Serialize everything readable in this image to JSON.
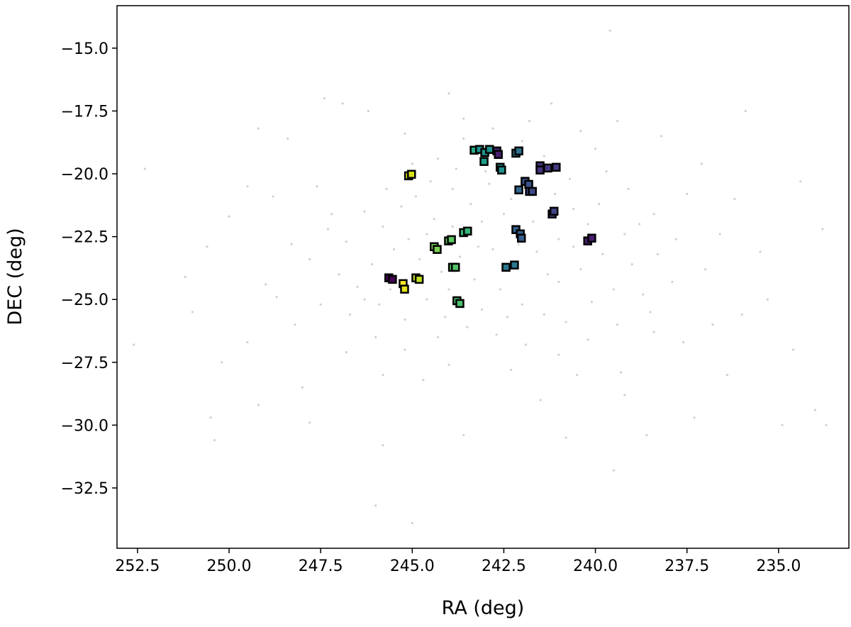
{
  "chart_data": {
    "type": "scatter",
    "title": "",
    "xlabel": "RA (deg)",
    "ylabel": "DEC (deg)",
    "xlim": [
      253.06,
      233.08
    ],
    "ylim": [
      -34.9,
      -13.31
    ],
    "x_inverted": true,
    "grid": false,
    "x_ticks": [
      252.5,
      250.0,
      247.5,
      245.0,
      242.5,
      240.0,
      237.5,
      235.0
    ],
    "x_tick_labels": [
      "252.5",
      "250.0",
      "247.5",
      "245.0",
      "242.5",
      "240.0",
      "237.5",
      "235.0"
    ],
    "y_ticks": [
      -15.0,
      -17.5,
      -20.0,
      -22.5,
      -25.0,
      -27.5,
      -30.0,
      -32.5
    ],
    "y_tick_labels": [
      "−15.0",
      "−17.5",
      "−20.0",
      "−22.5",
      "−25.0",
      "−27.5",
      "−30.0",
      "−32.5"
    ],
    "background_color": "#bdbdbd",
    "background_points": [
      [
        239.6,
        -14.3
      ],
      [
        246.0,
        -33.2
      ],
      [
        245.0,
        -33.9
      ],
      [
        239.5,
        -31.8
      ],
      [
        234.0,
        -29.4
      ],
      [
        233.7,
        -30.0
      ],
      [
        234.9,
        -30.0
      ],
      [
        252.3,
        -19.8
      ],
      [
        251.2,
        -24.1
      ],
      [
        250.5,
        -29.7
      ],
      [
        250.4,
        -30.6
      ],
      [
        252.6,
        -26.8
      ],
      [
        249.5,
        -20.5
      ],
      [
        249.2,
        -18.2
      ],
      [
        248.4,
        -18.6
      ],
      [
        247.4,
        -17.0
      ],
      [
        246.9,
        -17.2
      ],
      [
        235.9,
        -17.5
      ],
      [
        234.4,
        -20.3
      ],
      [
        233.8,
        -22.2
      ],
      [
        235.3,
        -25.0
      ],
      [
        234.6,
        -27.0
      ],
      [
        236.4,
        -28.0
      ],
      [
        237.3,
        -29.7
      ],
      [
        238.6,
        -30.4
      ],
      [
        240.8,
        -30.5
      ],
      [
        243.6,
        -30.4
      ],
      [
        245.8,
        -30.8
      ],
      [
        247.8,
        -29.9
      ],
      [
        249.2,
        -29.2
      ],
      [
        250.2,
        -27.5
      ],
      [
        251.0,
        -25.5
      ],
      [
        250.6,
        -22.9
      ],
      [
        250.0,
        -21.7
      ],
      [
        248.8,
        -20.9
      ],
      [
        247.6,
        -20.5
      ],
      [
        246.2,
        -17.5
      ],
      [
        244.0,
        -16.8
      ],
      [
        241.2,
        -17.2
      ],
      [
        239.4,
        -17.9
      ],
      [
        238.2,
        -18.5
      ],
      [
        237.1,
        -19.6
      ],
      [
        236.2,
        -21.0
      ],
      [
        235.5,
        -23.1
      ],
      [
        236.0,
        -25.6
      ],
      [
        237.6,
        -26.7
      ],
      [
        239.3,
        -27.9
      ],
      [
        241.5,
        -29.0
      ],
      [
        244.7,
        -28.2
      ],
      [
        246.8,
        -27.1
      ],
      [
        248.2,
        -26.0
      ],
      [
        249.0,
        -24.4
      ],
      [
        248.3,
        -22.8
      ],
      [
        247.2,
        -21.6
      ],
      [
        238.5,
        -25.5
      ],
      [
        237.0,
        -23.8
      ],
      [
        238.4,
        -21.6
      ],
      [
        240.0,
        -19.0
      ],
      [
        245.8,
        -22.1
      ],
      [
        245.3,
        -21.3
      ],
      [
        244.9,
        -20.9
      ],
      [
        244.4,
        -21.8
      ],
      [
        243.9,
        -20.6
      ],
      [
        243.4,
        -21.2
      ],
      [
        242.9,
        -20.4
      ],
      [
        242.3,
        -21.0
      ],
      [
        241.7,
        -21.9
      ],
      [
        241.1,
        -20.8
      ],
      [
        240.6,
        -21.4
      ],
      [
        240.2,
        -22.0
      ],
      [
        239.8,
        -23.2
      ],
      [
        240.4,
        -23.8
      ],
      [
        241.0,
        -24.3
      ],
      [
        241.6,
        -23.1
      ],
      [
        242.1,
        -22.8
      ],
      [
        242.8,
        -23.0
      ],
      [
        243.2,
        -22.9
      ],
      [
        243.7,
        -23.3
      ],
      [
        244.2,
        -23.9
      ],
      [
        244.8,
        -23.4
      ],
      [
        245.5,
        -23.0
      ],
      [
        246.1,
        -23.6
      ],
      [
        246.5,
        -24.5
      ],
      [
        245.9,
        -25.2
      ],
      [
        245.2,
        -25.8
      ],
      [
        244.6,
        -25.0
      ],
      [
        244.0,
        -24.6
      ],
      [
        243.3,
        -24.2
      ],
      [
        242.6,
        -24.6
      ],
      [
        242.0,
        -25.2
      ],
      [
        241.4,
        -25.6
      ],
      [
        240.8,
        -25.9
      ],
      [
        240.1,
        -25.1
      ],
      [
        239.5,
        -24.6
      ],
      [
        239.0,
        -23.6
      ],
      [
        239.2,
        -22.4
      ],
      [
        239.9,
        -21.2
      ],
      [
        240.7,
        -20.2
      ],
      [
        241.4,
        -19.3
      ],
      [
        242.0,
        -18.7
      ],
      [
        242.8,
        -18.2
      ],
      [
        243.6,
        -18.6
      ],
      [
        244.3,
        -19.4
      ],
      [
        245.0,
        -19.6
      ],
      [
        245.7,
        -20.6
      ],
      [
        246.3,
        -21.5
      ],
      [
        246.8,
        -22.7
      ],
      [
        247.0,
        -24.0
      ],
      [
        246.7,
        -25.6
      ],
      [
        246.0,
        -26.5
      ],
      [
        245.2,
        -27.0
      ],
      [
        244.3,
        -26.5
      ],
      [
        243.5,
        -26.1
      ],
      [
        242.7,
        -26.4
      ],
      [
        241.9,
        -26.8
      ],
      [
        241.0,
        -27.2
      ],
      [
        240.2,
        -26.6
      ],
      [
        239.4,
        -26.0
      ],
      [
        238.7,
        -24.8
      ],
      [
        238.3,
        -23.2
      ],
      [
        238.8,
        -22.0
      ],
      [
        239.1,
        -20.6
      ],
      [
        239.7,
        -19.9
      ],
      [
        243.0,
        -19.9
      ],
      [
        243.8,
        -19.8
      ],
      [
        244.5,
        -20.3
      ],
      [
        242.5,
        -21.6
      ],
      [
        243.1,
        -21.9
      ],
      [
        243.9,
        -22.1
      ],
      [
        244.6,
        -22.4
      ],
      [
        245.1,
        -22.6
      ],
      [
        241.0,
        -22.6
      ],
      [
        240.6,
        -22.9
      ],
      [
        241.3,
        -24.0
      ],
      [
        242.4,
        -25.7
      ],
      [
        243.1,
        -25.4
      ],
      [
        244.1,
        -25.7
      ],
      [
        245.6,
        -24.6
      ],
      [
        246.3,
        -25.0
      ],
      [
        247.5,
        -25.2
      ],
      [
        247.8,
        -23.4
      ],
      [
        247.3,
        -22.2
      ],
      [
        237.8,
        -22.6
      ],
      [
        237.9,
        -24.3
      ],
      [
        238.4,
        -26.3
      ],
      [
        240.5,
        -28.0
      ],
      [
        242.3,
        -27.8
      ],
      [
        244.0,
        -27.6
      ],
      [
        245.8,
        -28.0
      ],
      [
        243.6,
        -17.8
      ],
      [
        241.8,
        -17.9
      ],
      [
        240.4,
        -18.3
      ],
      [
        245.2,
        -18.4
      ],
      [
        239.2,
        -28.8
      ],
      [
        236.8,
        -26.0
      ],
      [
        236.6,
        -22.4
      ],
      [
        237.5,
        -20.8
      ],
      [
        248.7,
        -24.9
      ],
      [
        249.5,
        -26.7
      ],
      [
        248.0,
        -28.5
      ]
    ],
    "highlighted_points": [
      {
        "ra": 245.1,
        "dec": -20.08,
        "color": "#d8e219"
      },
      {
        "ra": 245.02,
        "dec": -20.02,
        "color": "#d8e219"
      },
      {
        "ra": 243.31,
        "dec": -19.06,
        "color": "#22a884"
      },
      {
        "ra": 243.16,
        "dec": -19.03,
        "color": "#20928c"
      },
      {
        "ra": 243.02,
        "dec": -19.15,
        "color": "#20928c"
      },
      {
        "ra": 242.89,
        "dec": -19.03,
        "color": "#21918c"
      },
      {
        "ra": 242.69,
        "dec": -19.09,
        "color": "#481f70"
      },
      {
        "ra": 242.65,
        "dec": -19.23,
        "color": "#481f70"
      },
      {
        "ra": 243.04,
        "dec": -19.51,
        "color": "#1f9e89"
      },
      {
        "ra": 242.6,
        "dec": -19.74,
        "color": "#21918c"
      },
      {
        "ra": 242.56,
        "dec": -19.85,
        "color": "#21918c"
      },
      {
        "ra": 242.17,
        "dec": -19.18,
        "color": "#2c728e"
      },
      {
        "ra": 242.09,
        "dec": -19.09,
        "color": "#2c728e"
      },
      {
        "ra": 241.51,
        "dec": -19.68,
        "color": "#46337e"
      },
      {
        "ra": 241.51,
        "dec": -19.85,
        "color": "#46337e"
      },
      {
        "ra": 241.3,
        "dec": -19.77,
        "color": "#443a83"
      },
      {
        "ra": 241.07,
        "dec": -19.74,
        "color": "#443a83"
      },
      {
        "ra": 241.92,
        "dec": -20.3,
        "color": "#3b528b"
      },
      {
        "ra": 241.82,
        "dec": -20.42,
        "color": "#3b528b"
      },
      {
        "ra": 242.09,
        "dec": -20.64,
        "color": "#31688e"
      },
      {
        "ra": 241.8,
        "dec": -20.7,
        "color": "#3e4a89"
      },
      {
        "ra": 241.72,
        "dec": -20.7,
        "color": "#3e4a89"
      },
      {
        "ra": 241.18,
        "dec": -21.6,
        "color": "#414487"
      },
      {
        "ra": 241.13,
        "dec": -21.49,
        "color": "#414487"
      },
      {
        "ra": 240.21,
        "dec": -22.67,
        "color": "#481c6e"
      },
      {
        "ra": 240.1,
        "dec": -22.56,
        "color": "#481c6e"
      },
      {
        "ra": 242.17,
        "dec": -22.22,
        "color": "#355f8d"
      },
      {
        "ra": 242.05,
        "dec": -22.39,
        "color": "#355f8d"
      },
      {
        "ra": 242.02,
        "dec": -22.56,
        "color": "#355f8d"
      },
      {
        "ra": 242.44,
        "dec": -23.72,
        "color": "#2a788e"
      },
      {
        "ra": 242.21,
        "dec": -23.63,
        "color": "#2a788e"
      },
      {
        "ra": 243.6,
        "dec": -22.34,
        "color": "#35b779"
      },
      {
        "ra": 243.49,
        "dec": -22.28,
        "color": "#35b779"
      },
      {
        "ra": 244.01,
        "dec": -22.67,
        "color": "#5ec962"
      },
      {
        "ra": 243.93,
        "dec": -22.62,
        "color": "#5ec962"
      },
      {
        "ra": 244.4,
        "dec": -22.9,
        "color": "#7ad151"
      },
      {
        "ra": 244.32,
        "dec": -23.01,
        "color": "#7ad151"
      },
      {
        "ra": 243.9,
        "dec": -23.72,
        "color": "#52c569"
      },
      {
        "ra": 243.82,
        "dec": -23.72,
        "color": "#52c569"
      },
      {
        "ra": 245.64,
        "dec": -24.14,
        "color": "#440154"
      },
      {
        "ra": 245.54,
        "dec": -24.2,
        "color": "#440154"
      },
      {
        "ra": 245.25,
        "dec": -24.37,
        "color": "#fde725"
      },
      {
        "ra": 245.21,
        "dec": -24.59,
        "color": "#e5e419"
      },
      {
        "ra": 244.9,
        "dec": -24.14,
        "color": "#c2df23"
      },
      {
        "ra": 244.81,
        "dec": -24.2,
        "color": "#c2df23"
      },
      {
        "ra": 243.78,
        "dec": -25.05,
        "color": "#4ac16d"
      },
      {
        "ra": 243.7,
        "dec": -25.16,
        "color": "#4ac16d"
      }
    ]
  }
}
